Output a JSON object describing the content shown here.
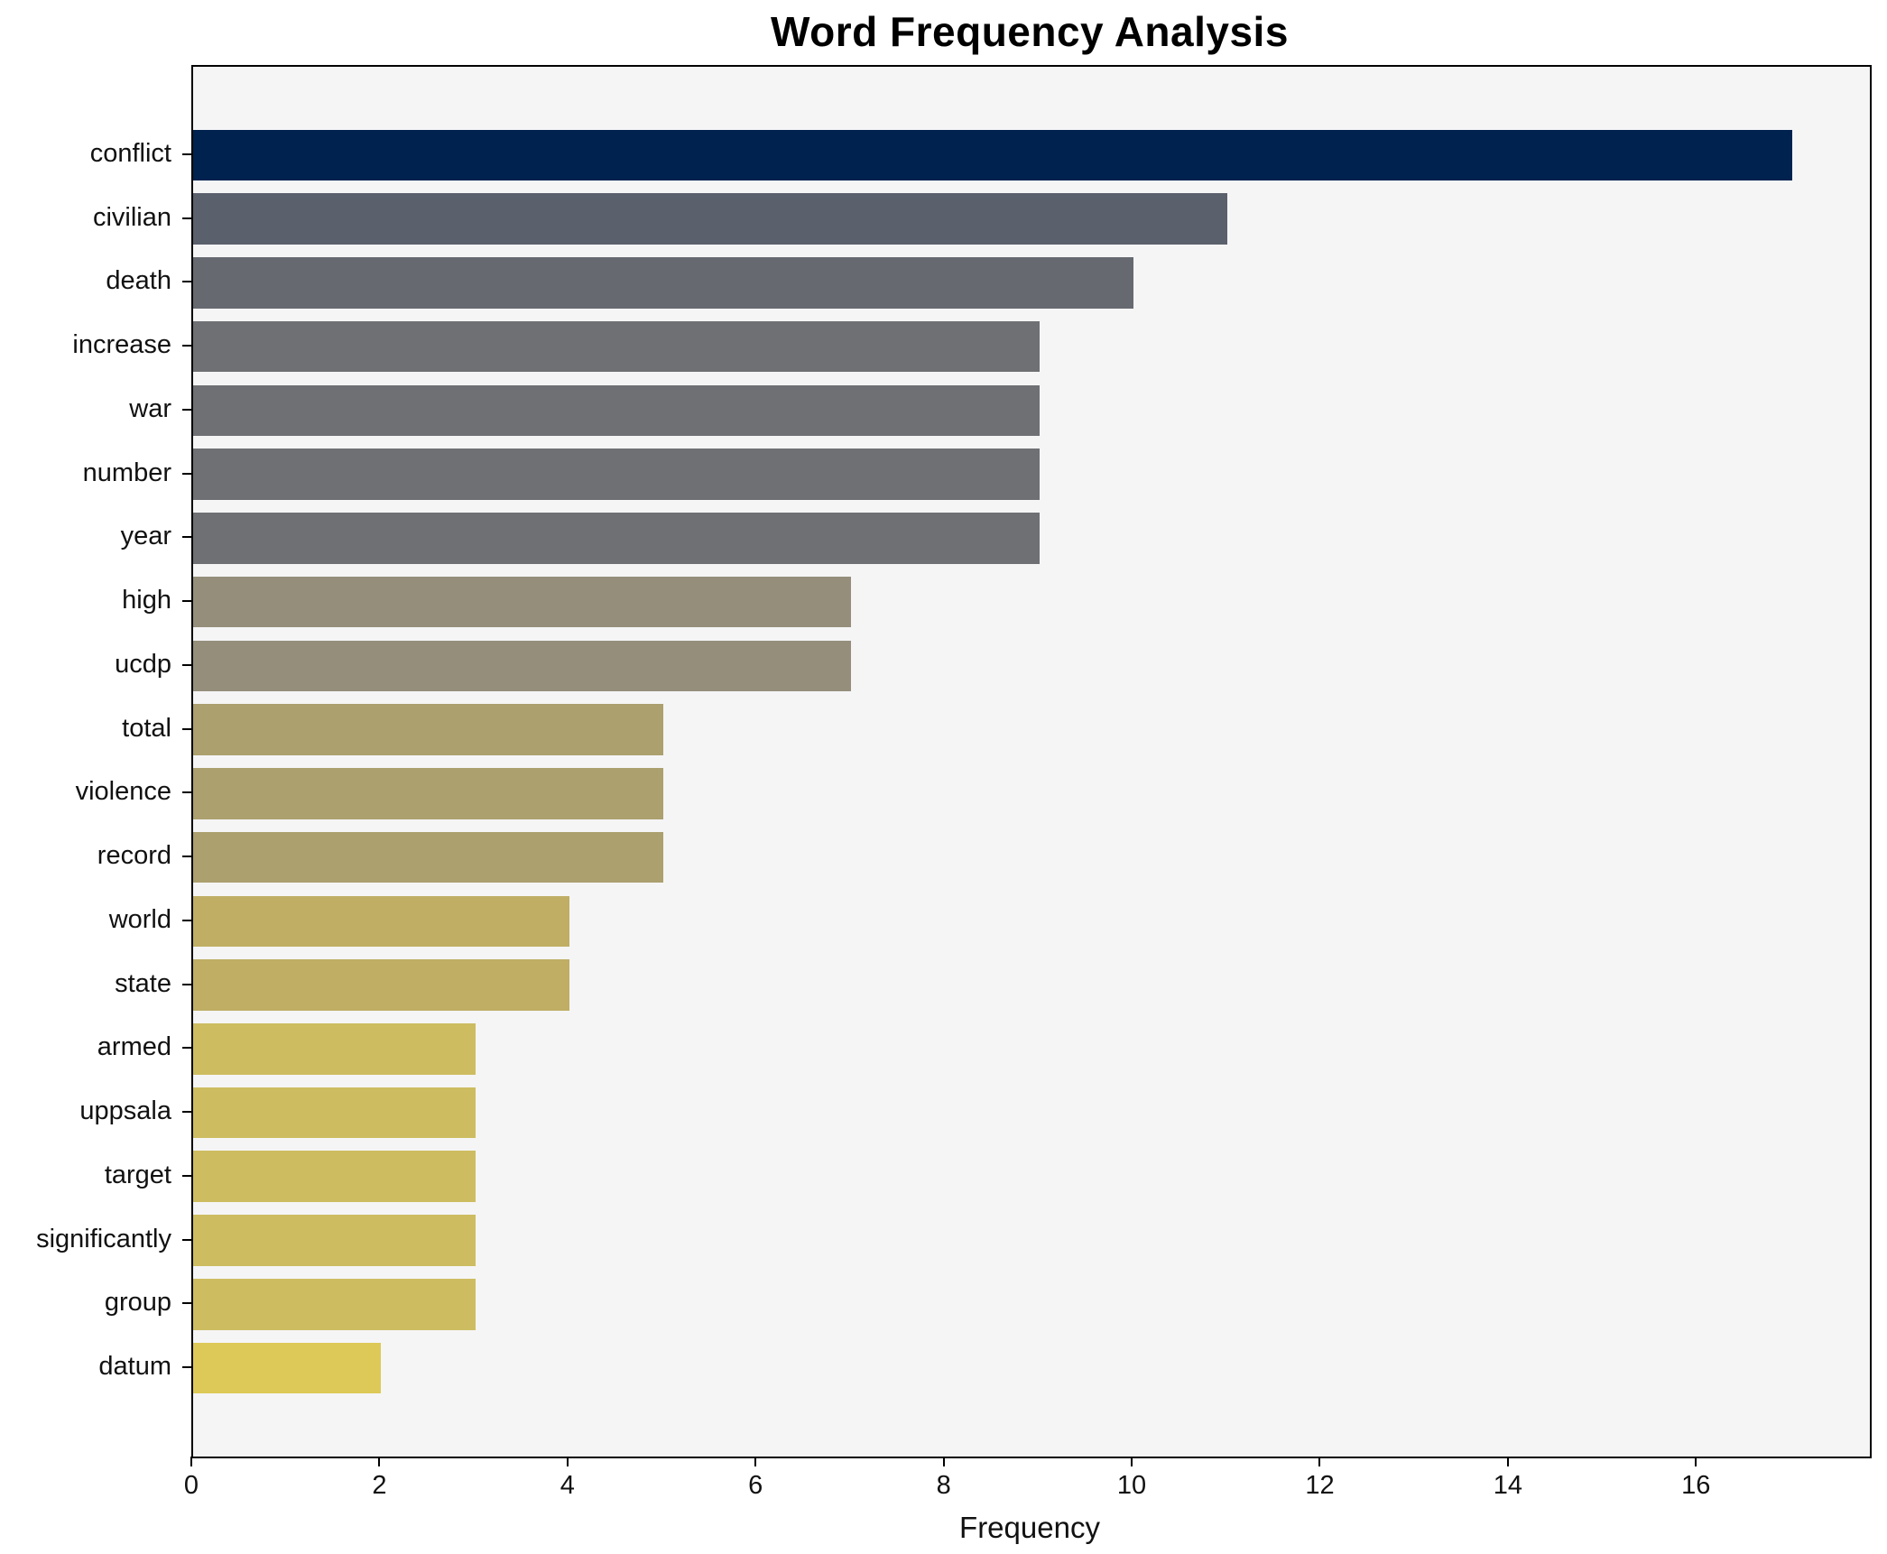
{
  "chart_data": {
    "type": "bar",
    "orientation": "horizontal",
    "title": "Word Frequency Analysis",
    "xlabel": "Frequency",
    "ylabel": "",
    "categories": [
      "conflict",
      "civilian",
      "death",
      "increase",
      "war",
      "number",
      "year",
      "high",
      "ucdp",
      "total",
      "violence",
      "record",
      "world",
      "state",
      "armed",
      "uppsala",
      "target",
      "significantly",
      "group",
      "datum"
    ],
    "values": [
      17,
      11,
      10,
      9,
      9,
      9,
      9,
      7,
      7,
      5,
      5,
      5,
      4,
      4,
      3,
      3,
      3,
      3,
      3,
      2
    ],
    "bar_colors": [
      "#00224e",
      "#5b606d",
      "#666970",
      "#6e7073",
      "#6e7073",
      "#6e7073",
      "#6e7073",
      "#948e7b",
      "#948e7b",
      "#aba06e",
      "#aba06e",
      "#aba06e",
      "#bfae64",
      "#bfae64",
      "#cdbd60",
      "#cdbd60",
      "#cdbd60",
      "#cdbd60",
      "#cdbd60",
      "#ddc957"
    ],
    "xlim": [
      0,
      17.83
    ],
    "x_ticks": [
      0,
      2,
      4,
      6,
      8,
      10,
      12,
      14,
      16
    ],
    "grid": false,
    "legend": null,
    "plot_background": "#f5f5f6",
    "colormap_note": "cividis-reversed shading, darker = higher frequency"
  }
}
